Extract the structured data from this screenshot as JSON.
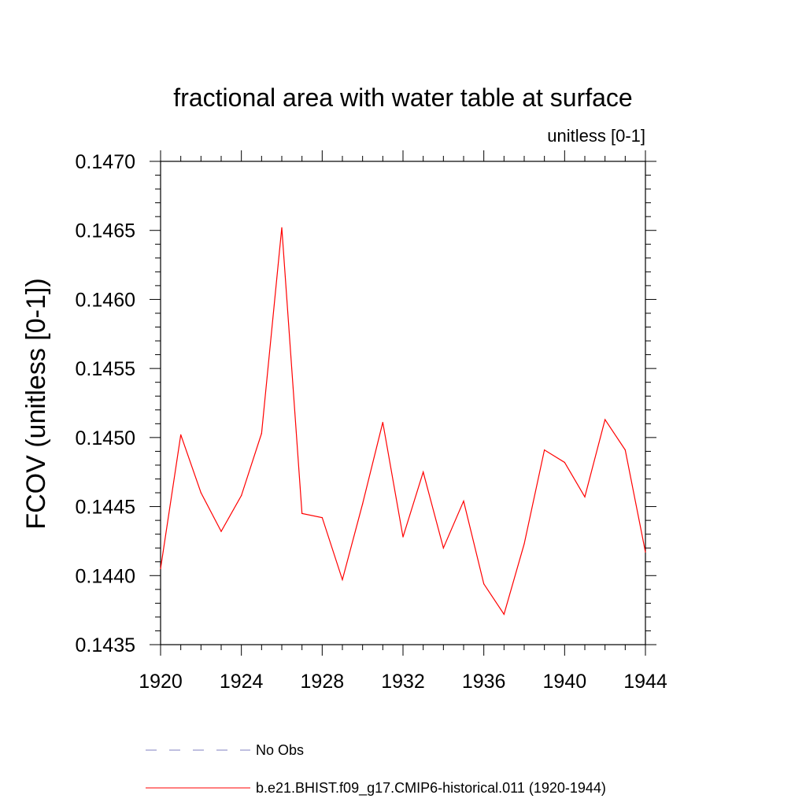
{
  "chart_data": {
    "type": "line",
    "title": "fractional area with water table at surface",
    "subtitle": "unitless [0-1]",
    "ylabel": "FCOV  (unitless [0-1])",
    "xlabel": "",
    "xlim": [
      1920,
      1944
    ],
    "ylim": [
      0.1435,
      0.147
    ],
    "x_ticks": [
      1920,
      1924,
      1928,
      1932,
      1936,
      1940,
      1944
    ],
    "x_tick_labels": [
      "1920",
      "1924",
      "1928",
      "1932",
      "1936",
      "1940",
      "1944"
    ],
    "y_ticks": [
      0.1435,
      0.144,
      0.1445,
      0.145,
      0.1455,
      0.146,
      0.1465,
      0.147
    ],
    "y_tick_labels": [
      "0.1435",
      "0.1440",
      "0.1445",
      "0.1450",
      "0.1455",
      "0.1460",
      "0.1465",
      "0.1470"
    ],
    "grid": false,
    "legend_position": "bottom",
    "series": [
      {
        "name": "b.e21.BHIST.f09_g17.CMIP6-historical.011 (1920-1944)",
        "color": "#ff0000",
        "style": "solid",
        "x": [
          1920,
          1921,
          1922,
          1923,
          1924,
          1925,
          1926,
          1927,
          1928,
          1929,
          1930,
          1931,
          1932,
          1933,
          1934,
          1935,
          1936,
          1937,
          1938,
          1939,
          1940,
          1941,
          1942,
          1943,
          1944
        ],
        "y": [
          0.14405,
          0.14502,
          0.1446,
          0.14432,
          0.14458,
          0.14503,
          0.14652,
          0.14445,
          0.14442,
          0.14397,
          0.14452,
          0.14511,
          0.14428,
          0.14475,
          0.1442,
          0.14454,
          0.14394,
          0.14372,
          0.14423,
          0.14491,
          0.14482,
          0.14457,
          0.14513,
          0.14491,
          0.14417
        ]
      }
    ],
    "legend": [
      {
        "label": "No Obs",
        "color": "#8080c0",
        "style": "dashed"
      },
      {
        "label": "b.e21.BHIST.f09_g17.CMIP6-historical.011 (1920-1944)",
        "color": "#ff0000",
        "style": "solid"
      }
    ]
  }
}
